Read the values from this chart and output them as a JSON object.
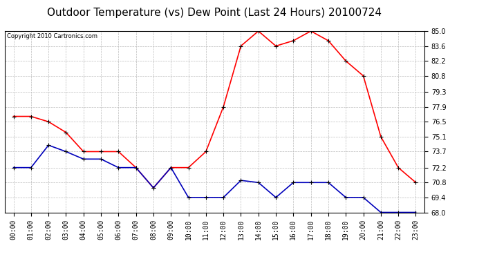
{
  "title": "Outdoor Temperature (vs) Dew Point (Last 24 Hours) 20100724",
  "copyright": "Copyright 2010 Cartronics.com",
  "hours": [
    "00:00",
    "01:00",
    "02:00",
    "03:00",
    "04:00",
    "05:00",
    "06:00",
    "07:00",
    "08:00",
    "09:00",
    "10:00",
    "11:00",
    "12:00",
    "13:00",
    "14:00",
    "15:00",
    "16:00",
    "17:00",
    "18:00",
    "19:00",
    "20:00",
    "21:00",
    "22:00",
    "23:00"
  ],
  "temp": [
    77.0,
    77.0,
    76.5,
    75.5,
    73.7,
    73.7,
    73.7,
    72.2,
    70.3,
    72.2,
    72.2,
    73.7,
    77.9,
    83.6,
    85.0,
    83.6,
    84.1,
    85.0,
    84.1,
    82.2,
    80.8,
    75.1,
    72.2,
    70.8
  ],
  "dew": [
    72.2,
    72.2,
    74.3,
    73.7,
    73.0,
    73.0,
    72.2,
    72.2,
    70.3,
    72.2,
    69.4,
    69.4,
    69.4,
    71.0,
    70.8,
    69.4,
    70.8,
    70.8,
    70.8,
    69.4,
    69.4,
    68.0,
    68.0,
    68.0
  ],
  "temp_color": "#ff0000",
  "dew_color": "#0000bb",
  "bg_color": "#ffffff",
  "grid_color": "#bbbbbb",
  "ylim_min": 68.0,
  "ylim_max": 85.0,
  "yticks": [
    68.0,
    69.4,
    70.8,
    72.2,
    73.7,
    75.1,
    76.5,
    77.9,
    79.3,
    80.8,
    82.2,
    83.6,
    85.0
  ],
  "title_fontsize": 11,
  "copyright_fontsize": 6,
  "tick_fontsize": 7,
  "marker": "+",
  "marker_size": 5,
  "marker_color": "#000000",
  "line_width": 1.2
}
